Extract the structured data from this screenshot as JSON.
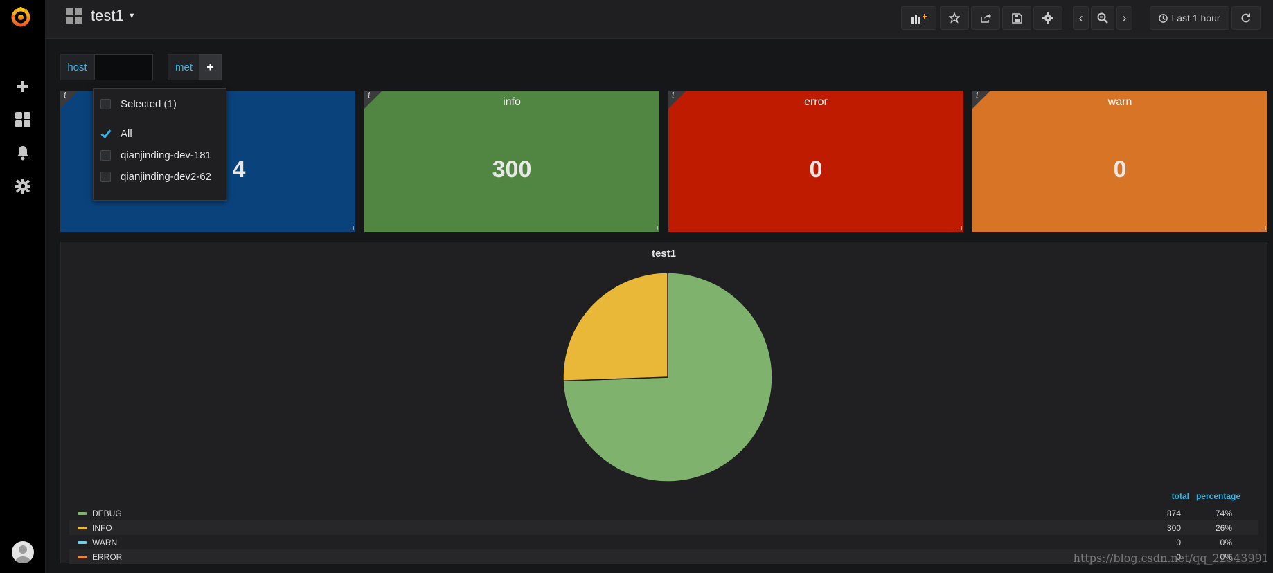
{
  "sidebar": {
    "logo_icon": "grafana-logo-icon",
    "items": [
      {
        "name": "create",
        "icon": "plus-icon"
      },
      {
        "name": "dashboards",
        "icon": "dashboards-grid-icon"
      },
      {
        "name": "alerting",
        "icon": "bell-icon"
      },
      {
        "name": "configuration",
        "icon": "gear-icon"
      }
    ],
    "profile_icon": "avatar-icon"
  },
  "header": {
    "dashboard_title": "test1",
    "actions": [
      {
        "name": "add-panel",
        "icon": "add-panel-icon"
      },
      {
        "name": "star",
        "icon": "star-icon"
      },
      {
        "name": "share",
        "icon": "share-icon"
      },
      {
        "name": "save",
        "icon": "save-icon"
      },
      {
        "name": "settings",
        "icon": "gear-icon"
      }
    ],
    "time_nav": {
      "back_icon": "chevron-left-icon",
      "zoom_icon": "zoom-out-icon",
      "forward_icon": "chevron-right-icon"
    },
    "time_picker": {
      "label": "Last 1 hour",
      "icon": "clock-icon"
    },
    "refresh_icon": "refresh-icon"
  },
  "variables": [
    {
      "label": "host",
      "value": ""
    },
    {
      "label": "met",
      "add_label": "+"
    }
  ],
  "dropdown": {
    "selected_label": "Selected (1)",
    "options": [
      {
        "label": "All",
        "checked": true
      },
      {
        "label": "qianjinding-dev-181",
        "checked": false
      },
      {
        "label": "qianjinding-dev2-62",
        "checked": false
      }
    ]
  },
  "stats": [
    {
      "title": "",
      "value": "4",
      "color": "#0a437c"
    },
    {
      "title": "info",
      "value": "300",
      "color": "#508642"
    },
    {
      "title": "error",
      "value": "0",
      "color": "#bf1b00"
    },
    {
      "title": "warn",
      "value": "0",
      "color": "#d87425"
    }
  ],
  "chart_data": {
    "type": "pie",
    "title": "test1",
    "slices": [
      {
        "label": "DEBUG",
        "value": 874,
        "color": "#7eb26d"
      },
      {
        "label": "INFO",
        "value": 300,
        "color": "#eab839"
      },
      {
        "label": "WARN",
        "value": 0,
        "color": "#6ed0e0"
      },
      {
        "label": "ERROR",
        "value": 0,
        "color": "#ef843c"
      }
    ],
    "legend_columns": [
      "total",
      "percentage"
    ],
    "legend_rows": [
      {
        "label": "DEBUG",
        "total": "874",
        "percentage": "74%",
        "color": "#7eb26d"
      },
      {
        "label": "INFO",
        "total": "300",
        "percentage": "26%",
        "color": "#eab839"
      },
      {
        "label": "WARN",
        "total": "0",
        "percentage": "0%",
        "color": "#6ed0e0"
      },
      {
        "label": "ERROR",
        "total": "0",
        "percentage": "0%",
        "color": "#ef843c"
      }
    ],
    "legend_placement": "bottom"
  },
  "watermark": "https://blog.csdn.net/qq_22543991"
}
